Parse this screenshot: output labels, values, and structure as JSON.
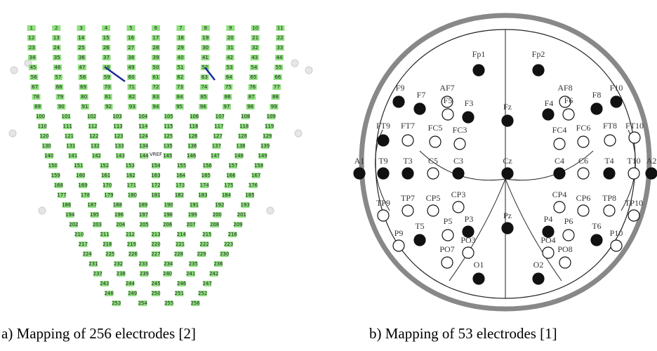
{
  "panel_a": {
    "caption": "a)  Mapping of 256 electrodes [2]",
    "reference": "VREF",
    "electrodes": [
      1,
      2,
      3,
      4,
      5,
      6,
      7,
      8,
      9,
      10,
      11,
      12,
      13,
      14,
      15,
      16,
      17,
      18,
      19,
      20,
      21,
      22,
      23,
      24,
      25,
      26,
      27,
      28,
      29,
      30,
      31,
      32,
      33,
      34,
      35,
      36,
      37,
      38,
      39,
      40,
      41,
      42,
      43,
      44,
      45,
      46,
      47,
      48,
      49,
      50,
      51,
      52,
      53,
      54,
      55,
      56,
      57,
      58,
      59,
      60,
      61,
      62,
      63,
      64,
      65,
      66,
      67,
      68,
      69,
      70,
      71,
      72,
      73,
      74,
      75,
      76,
      77,
      78,
      79,
      80,
      81,
      82,
      83,
      84,
      85,
      86,
      87,
      88,
      89,
      90,
      91,
      92,
      93,
      94,
      95,
      96,
      97,
      98,
      99,
      100,
      101,
      102,
      103,
      104,
      105,
      106,
      107,
      108,
      109,
      110,
      111,
      112,
      113,
      114,
      115,
      116,
      117,
      118,
      119,
      120,
      121,
      122,
      123,
      124,
      125,
      126,
      127,
      128,
      129,
      130,
      131,
      132,
      133,
      134,
      135,
      136,
      137,
      138,
      139,
      140,
      141,
      142,
      143,
      144,
      145,
      146,
      147,
      148,
      149,
      150,
      151,
      152,
      153,
      154,
      155,
      156,
      157,
      158,
      159,
      160,
      161,
      162,
      163,
      164,
      165,
      166,
      167,
      168,
      169,
      170,
      171,
      172,
      173,
      174,
      175,
      176,
      177,
      178,
      179,
      180,
      181,
      182,
      183,
      184,
      185,
      186,
      187,
      188,
      189,
      190,
      191,
      192,
      193,
      194,
      195,
      196,
      197,
      198,
      199,
      200,
      201,
      202,
      203,
      204,
      205,
      206,
      207,
      208,
      209,
      210,
      211,
      212,
      213,
      214,
      215,
      216,
      217,
      218,
      219,
      220,
      221,
      222,
      223,
      224,
      225,
      226,
      227,
      228,
      229,
      230,
      231,
      232,
      233,
      234,
      235,
      236,
      237,
      238,
      239,
      240,
      241,
      242,
      243,
      244,
      245,
      246,
      247,
      248,
      249,
      250,
      251,
      252,
      253,
      254,
      255,
      256
    ]
  },
  "panel_b": {
    "caption": "b)  Mapping of 53 electrodes [1]",
    "electrodes": [
      {
        "label": "Fp1",
        "filled": true
      },
      {
        "label": "Fp2",
        "filled": true
      },
      {
        "label": "AF7",
        "filled": false
      },
      {
        "label": "AF8",
        "filled": false
      },
      {
        "label": "F9",
        "filled": true
      },
      {
        "label": "F7",
        "filled": true
      },
      {
        "label": "F5",
        "filled": false
      },
      {
        "label": "F3",
        "filled": true
      },
      {
        "label": "Fz",
        "filled": true
      },
      {
        "label": "F4",
        "filled": true
      },
      {
        "label": "F6",
        "filled": false
      },
      {
        "label": "F8",
        "filled": true
      },
      {
        "label": "F10",
        "filled": true
      },
      {
        "label": "FT9",
        "filled": true
      },
      {
        "label": "FT7",
        "filled": false
      },
      {
        "label": "FC5",
        "filled": false
      },
      {
        "label": "FC3",
        "filled": false
      },
      {
        "label": "FC4",
        "filled": false
      },
      {
        "label": "FC6",
        "filled": false
      },
      {
        "label": "FT8",
        "filled": false
      },
      {
        "label": "FT10",
        "filled": false
      },
      {
        "label": "A1",
        "filled": true
      },
      {
        "label": "T9",
        "filled": true
      },
      {
        "label": "T3",
        "filled": true
      },
      {
        "label": "C5",
        "filled": false
      },
      {
        "label": "C3",
        "filled": true
      },
      {
        "label": "Cz",
        "filled": true
      },
      {
        "label": "C4",
        "filled": true
      },
      {
        "label": "C6",
        "filled": false
      },
      {
        "label": "T4",
        "filled": true
      },
      {
        "label": "T10",
        "filled": false
      },
      {
        "label": "A2",
        "filled": true
      },
      {
        "label": "TP9",
        "filled": false
      },
      {
        "label": "TP7",
        "filled": false
      },
      {
        "label": "CP5",
        "filled": false
      },
      {
        "label": "CP3",
        "filled": false
      },
      {
        "label": "CP4",
        "filled": false
      },
      {
        "label": "CP6",
        "filled": false
      },
      {
        "label": "TP8",
        "filled": false
      },
      {
        "label": "TP10",
        "filled": false
      },
      {
        "label": "Pz",
        "filled": true
      },
      {
        "label": "P9",
        "filled": false
      },
      {
        "label": "T5",
        "filled": true
      },
      {
        "label": "P5",
        "filled": false
      },
      {
        "label": "P3",
        "filled": true
      },
      {
        "label": "P4",
        "filled": true
      },
      {
        "label": "P6",
        "filled": false
      },
      {
        "label": "T6",
        "filled": true
      },
      {
        "label": "P10",
        "filled": false
      },
      {
        "label": "PO3",
        "filled": false
      },
      {
        "label": "PO7",
        "filled": false
      },
      {
        "label": "PO4",
        "filled": false
      },
      {
        "label": "PO8",
        "filled": false
      },
      {
        "label": "O1",
        "filled": true
      },
      {
        "label": "O2",
        "filled": true
      }
    ]
  }
}
